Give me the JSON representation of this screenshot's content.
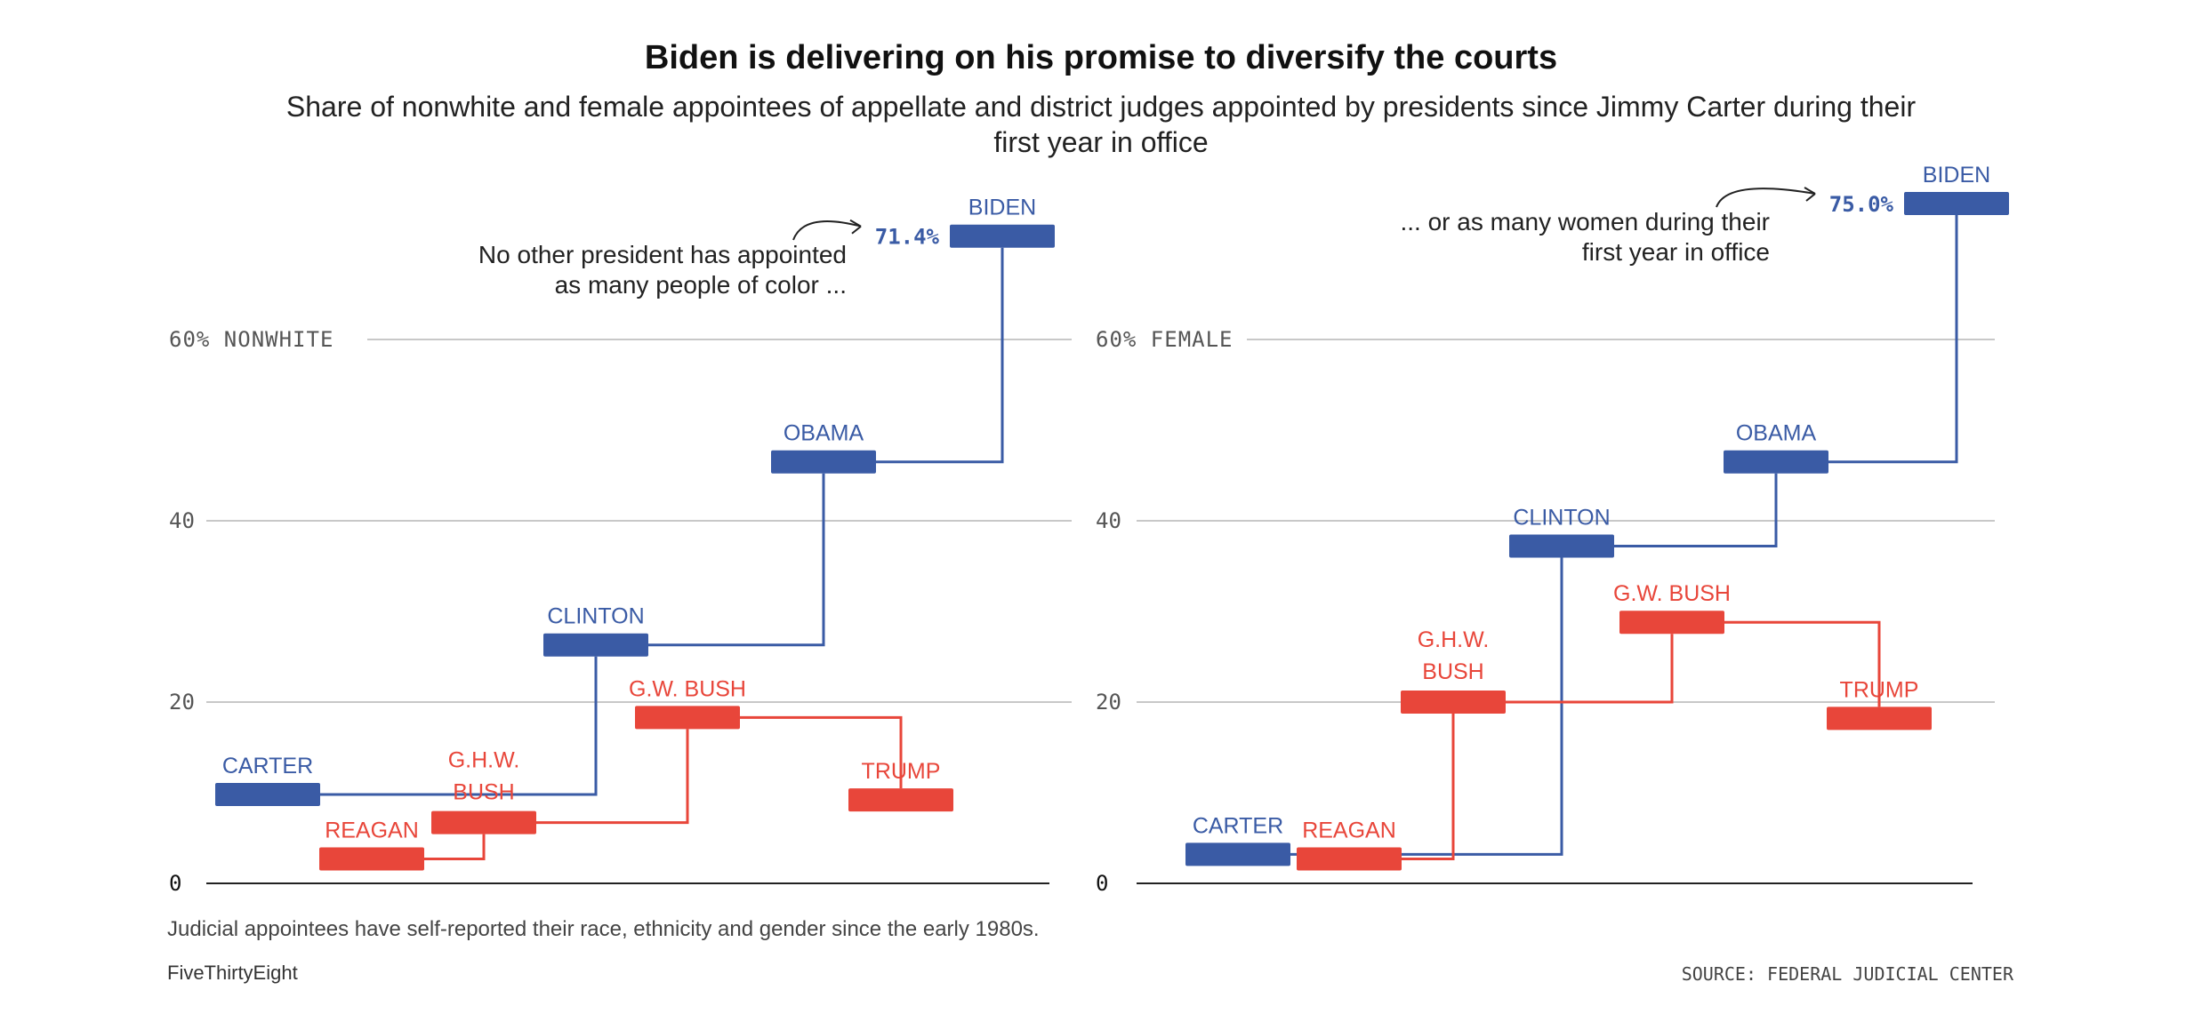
{
  "title": "Biden is delivering on his promise to diversify the courts",
  "subtitle": "Share of nonwhite and female appointees of appellate and district judges appointed by presidents since Jimmy Carter during their first year in office",
  "note": "Judicial appointees have self-reported their race, ethnicity and gender since the early 1980s.",
  "brand": "FiveThirtyEight",
  "source": "SOURCE: FEDERAL JUDICIAL CENTER",
  "colors": {
    "democrat": "#3a5ba5",
    "republican": "#e8463a",
    "grid": "#c8c8c8",
    "axis": "#222222",
    "tick": "#555555"
  },
  "chart_data": [
    {
      "type": "line",
      "step": true,
      "top_label": "60% NONWHITE",
      "yticks": [
        "0",
        "20",
        "40"
      ],
      "ylim": [
        0,
        78
      ],
      "grid": true,
      "highlight_value": "71.4%",
      "annotation": [
        "No other president has appointed",
        "as many people of color ..."
      ],
      "series": [
        {
          "party": "democrat",
          "points": [
            {
              "label": "CARTER",
              "value": 9.8
            },
            {
              "label": "CLINTON",
              "value": 26.3
            },
            {
              "label": "OBAMA",
              "value": 46.5
            },
            {
              "label": "BIDEN",
              "value": 71.4
            }
          ]
        },
        {
          "party": "republican",
          "points": [
            {
              "label": "REAGAN",
              "value": 2.7
            },
            {
              "label": "G.H.W. BUSH",
              "value": 6.7
            },
            {
              "label": "G.W. BUSH",
              "value": 18.3
            },
            {
              "label": "TRUMP",
              "value": 9.2
            }
          ]
        }
      ]
    },
    {
      "type": "line",
      "step": true,
      "top_label": "60% FEMALE",
      "yticks": [
        "0",
        "20",
        "40"
      ],
      "ylim": [
        0,
        78
      ],
      "grid": true,
      "highlight_value": "75.0%",
      "annotation": [
        "... or as many women during their",
        "first year in office"
      ],
      "series": [
        {
          "party": "democrat",
          "points": [
            {
              "label": "CARTER",
              "value": 3.2
            },
            {
              "label": "CLINTON",
              "value": 37.2
            },
            {
              "label": "OBAMA",
              "value": 46.5
            },
            {
              "label": "BIDEN",
              "value": 75.0
            }
          ]
        },
        {
          "party": "republican",
          "points": [
            {
              "label": "REAGAN",
              "value": 2.7
            },
            {
              "label": "G.H.W. BUSH",
              "value": 20.0
            },
            {
              "label": "G.W. BUSH",
              "value": 28.8
            },
            {
              "label": "TRUMP",
              "value": 18.2
            }
          ]
        }
      ]
    }
  ]
}
